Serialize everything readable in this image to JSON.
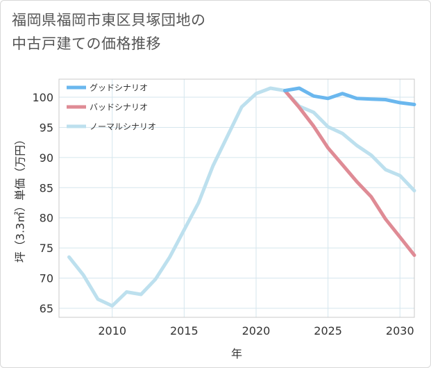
{
  "title": {
    "line1": "福岡県福岡市東区貝塚団地の",
    "line2": "中古戸建ての価格推移"
  },
  "chart_data": {
    "type": "line",
    "xlabel": "年",
    "ylabel": "坪（3.3㎡）単価（万円）",
    "xlim": [
      2006.3,
      2031
    ],
    "ylim": [
      63.5,
      103
    ],
    "x_ticks": [
      2010,
      2015,
      2020,
      2025,
      2030
    ],
    "y_ticks": [
      65,
      70,
      75,
      80,
      85,
      90,
      95,
      100
    ],
    "grid": true,
    "legend_position": "top-left",
    "series": [
      {
        "name": "グッドシナリオ",
        "color": "#6ab7ee",
        "x": [
          2022,
          2023,
          2024,
          2025,
          2026,
          2027,
          2028,
          2029,
          2030,
          2031
        ],
        "y": [
          101.1,
          101.5,
          100.2,
          99.8,
          100.6,
          99.8,
          99.7,
          99.6,
          99.1,
          98.8
        ]
      },
      {
        "name": "バッドシナリオ",
        "color": "#df8b95",
        "x": [
          2022,
          2023,
          2024,
          2025,
          2026,
          2027,
          2028,
          2029,
          2030,
          2031
        ],
        "y": [
          101.1,
          98.3,
          95.2,
          91.6,
          88.8,
          86.0,
          83.5,
          79.8,
          76.8,
          73.8
        ]
      },
      {
        "name": "ノーマルシナリオ",
        "color": "#bde0ee",
        "x": [
          2007,
          2008,
          2009,
          2010,
          2011,
          2012,
          2013,
          2014,
          2015,
          2016,
          2017,
          2018,
          2019,
          2020,
          2021,
          2022,
          2023,
          2024,
          2025,
          2026,
          2027,
          2028,
          2029,
          2030,
          2031
        ],
        "y": [
          73.5,
          70.5,
          66.5,
          65.4,
          67.7,
          67.3,
          69.8,
          73.5,
          78.0,
          82.5,
          88.6,
          93.5,
          98.4,
          100.6,
          101.5,
          101.1,
          98.5,
          97.5,
          95.1,
          94.0,
          92.0,
          90.4,
          88.0,
          87.0,
          84.5
        ]
      }
    ]
  }
}
